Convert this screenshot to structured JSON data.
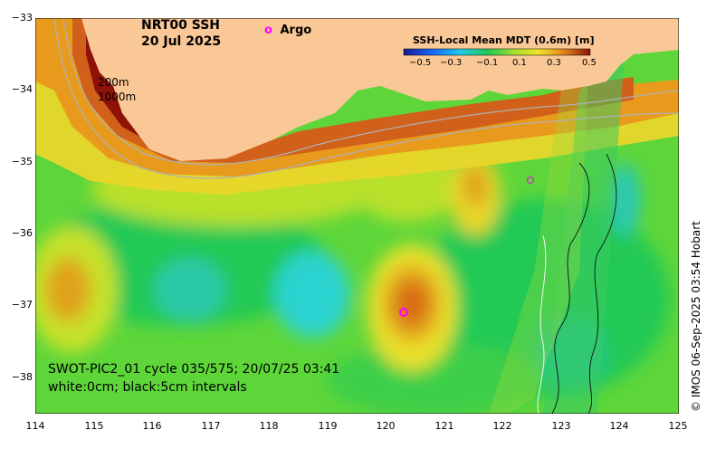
{
  "map": {
    "title_line1": "NRT00 SSH",
    "title_line2": "20 Jul 2025",
    "legend_argo_symbol": "o",
    "legend_argo_label": "Argo",
    "colorbar_title": "SSH-Local Mean MDT (0.6m) [m]",
    "colorbar_ticks": [
      "−0.5",
      "−0.3",
      "−0.1",
      "0.1",
      "0.3",
      "0.5"
    ],
    "isobath_label_1": "200m",
    "isobath_label_2": "1000m",
    "swot_line1": "SWOT-PIC2_01 cycle 035/575; 20/07/25 03:41",
    "swot_line2": "white:0cm; black:5cm intervals",
    "credit": "© IMOS 06-Sep-2025 03:54 Hobart",
    "x_ticks": [
      "114",
      "115",
      "116",
      "117",
      "118",
      "119",
      "120",
      "121",
      "122",
      "123",
      "124",
      "125"
    ],
    "y_ticks": [
      "−33",
      "−34",
      "−35",
      "−36",
      "−37",
      "−38"
    ],
    "colors": {
      "land": "#FAC896",
      "deep_green": "#22C955",
      "cyan": "#2CD3CF",
      "yellow": "#EEE62A",
      "orange": "#DD7A1A",
      "dark_red": "#8E1208",
      "argo": "#FF00FF"
    }
  }
}
